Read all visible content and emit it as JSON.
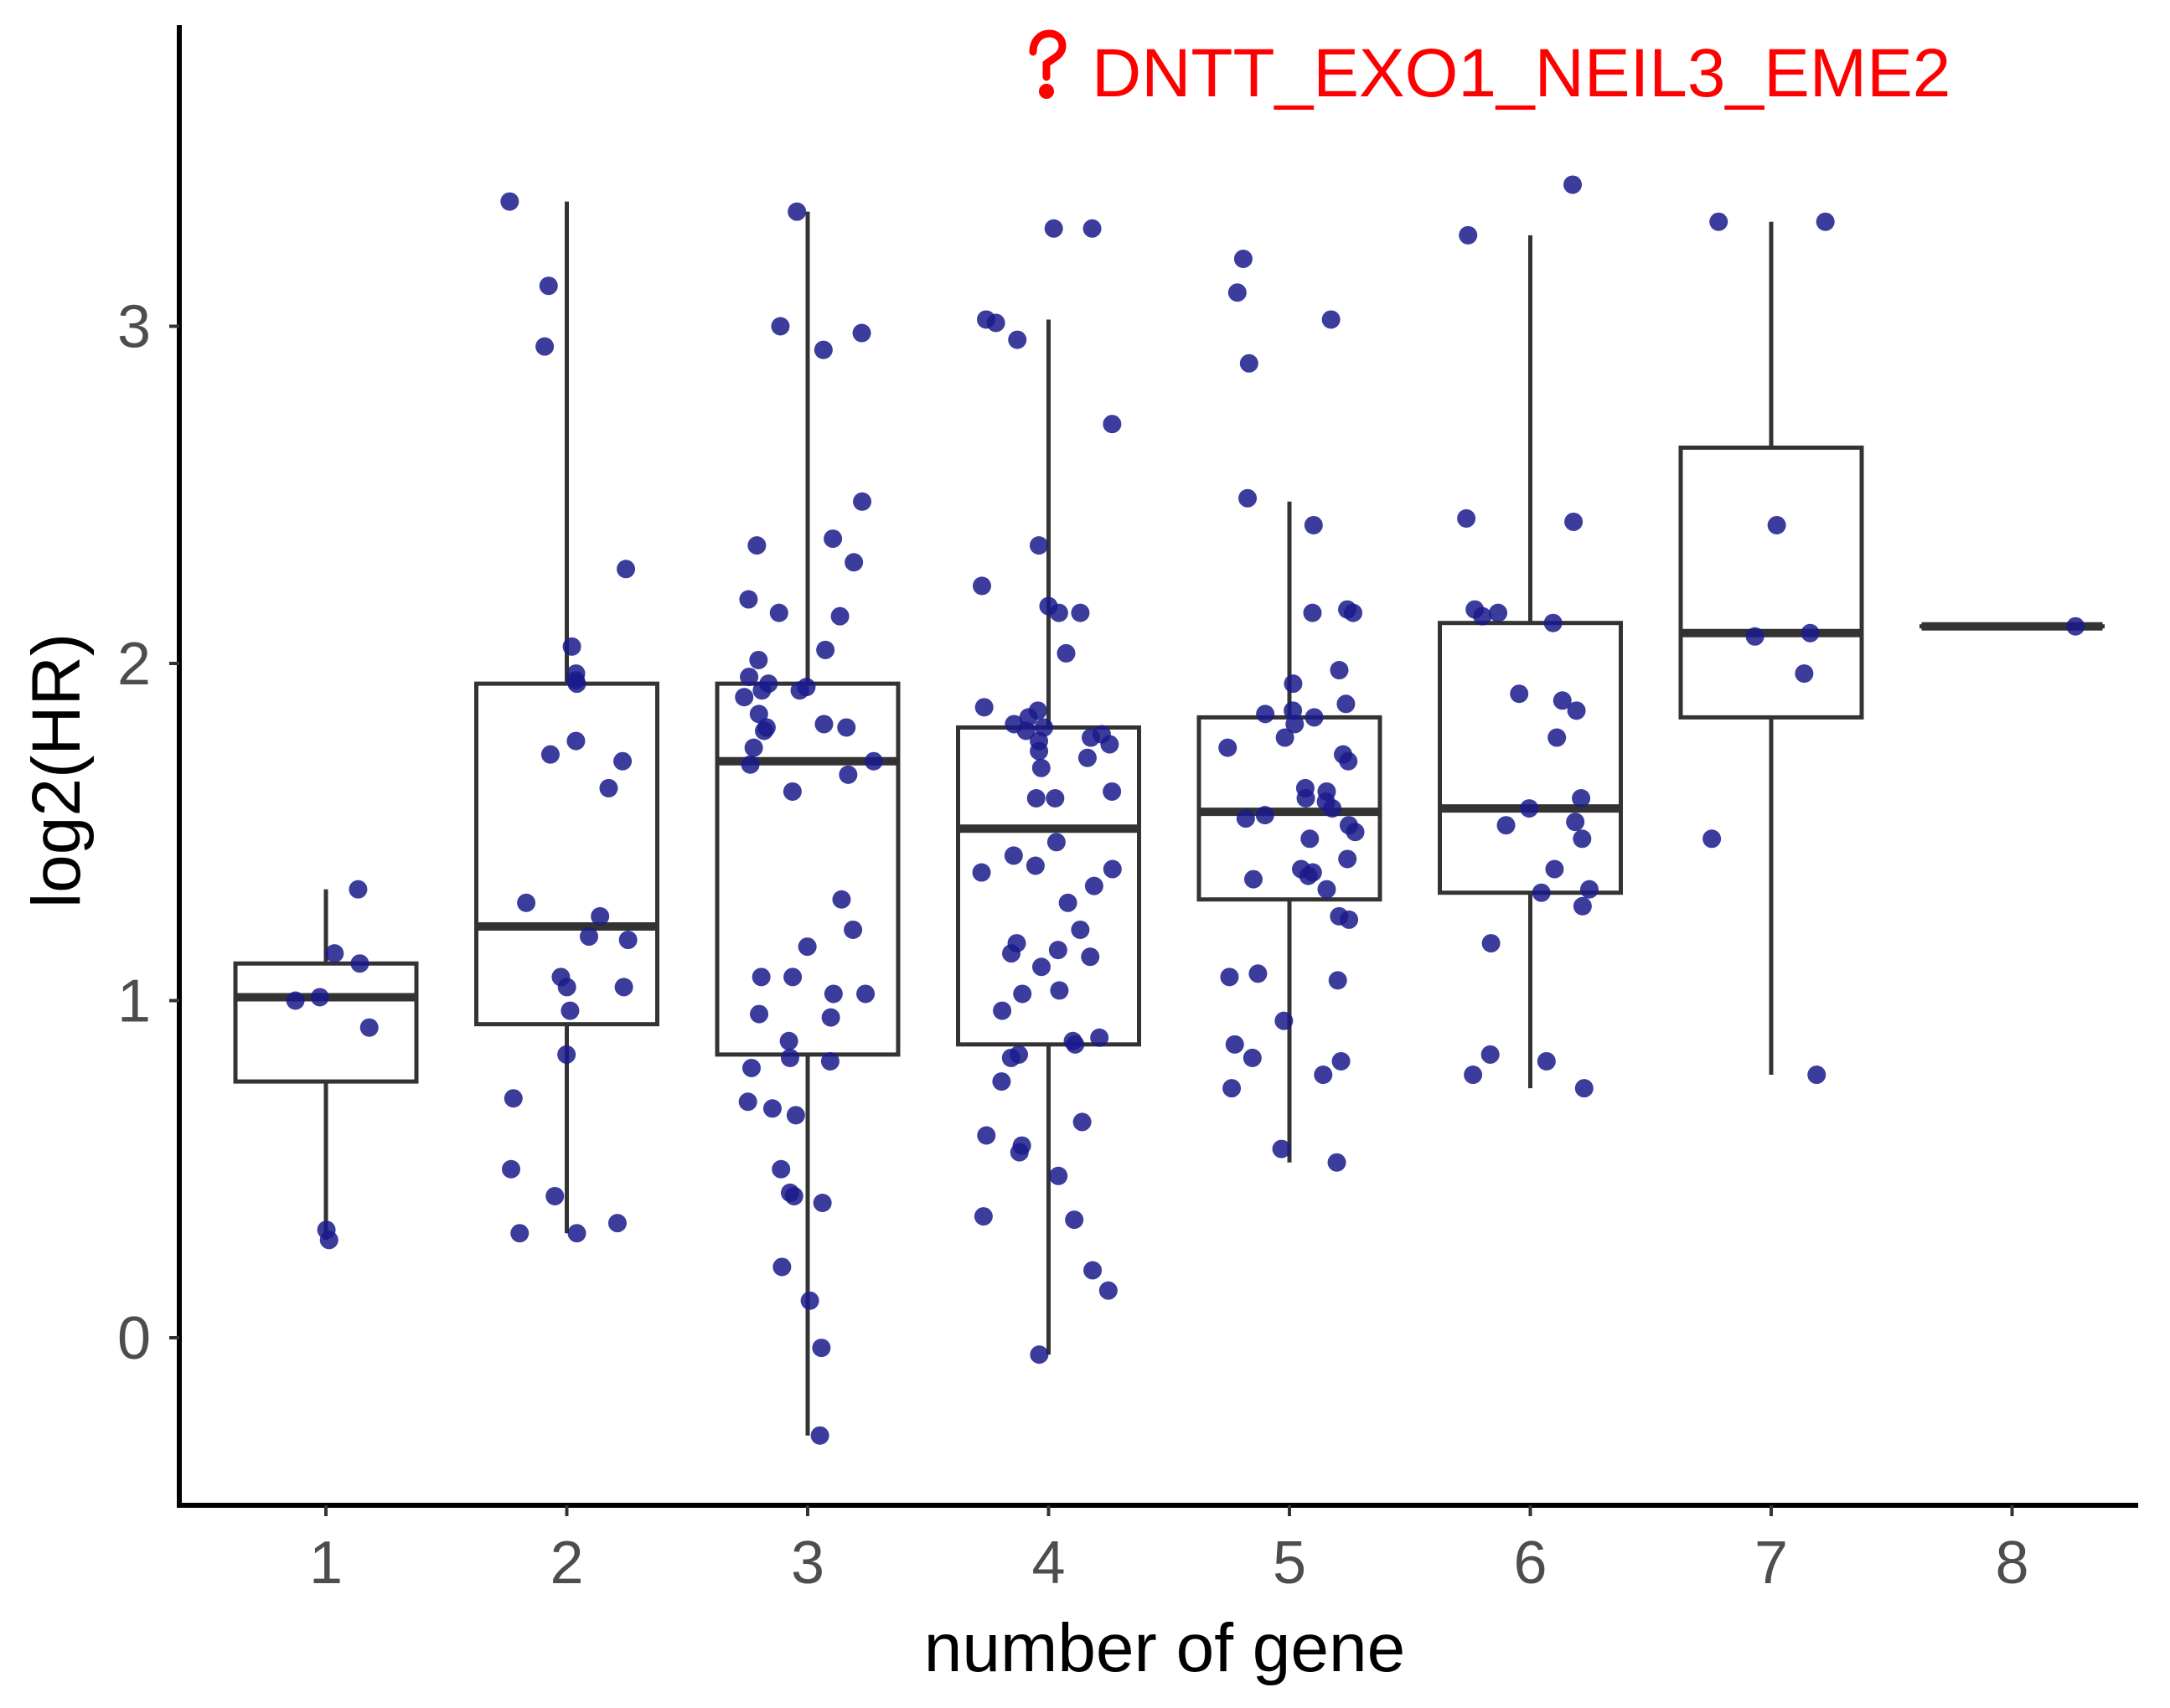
{
  "chart_data": {
    "type": "boxplot",
    "title": "",
    "xlabel": "number of gene",
    "ylabel": "log2(HR)",
    "categories": [
      "1",
      "2",
      "3",
      "4",
      "5",
      "6",
      "7",
      "8"
    ],
    "yticks": [
      0,
      1,
      2,
      3
    ],
    "ylim": [
      -0.5,
      3.7
    ],
    "grid": false,
    "legend": "none",
    "annotation": {
      "text": "DNTT_EXO1_NEIL3_EME2",
      "category": "4",
      "y": 3.55,
      "color": "#ff0000"
    },
    "colors": {
      "box": "#333333",
      "point": "#1a1a8c",
      "annotation": "#ff0000"
    },
    "boxes": [
      {
        "category": "1",
        "whisker_low": 0.29,
        "q1": 0.76,
        "median": 1.01,
        "q3": 1.11,
        "whisker_high": 1.33
      },
      {
        "category": "2",
        "whisker_low": 0.31,
        "q1": 0.93,
        "median": 1.22,
        "q3": 1.94,
        "whisker_high": 3.37
      },
      {
        "category": "3",
        "whisker_low": -0.29,
        "q1": 0.84,
        "median": 1.71,
        "q3": 1.94,
        "whisker_high": 3.34
      },
      {
        "category": "4",
        "whisker_low": -0.05,
        "q1": 0.87,
        "median": 1.51,
        "q3": 1.81,
        "whisker_high": 3.02
      },
      {
        "category": "5",
        "whisker_low": 0.52,
        "q1": 1.3,
        "median": 1.56,
        "q3": 1.84,
        "whisker_high": 2.48
      },
      {
        "category": "6",
        "whisker_low": 0.74,
        "q1": 1.32,
        "median": 1.57,
        "q3": 2.12,
        "whisker_high": 3.27
      },
      {
        "category": "7",
        "whisker_low": 0.78,
        "q1": 1.84,
        "median": 2.09,
        "q3": 2.64,
        "whisker_high": 3.31
      },
      {
        "category": "8",
        "whisker_low": 2.11,
        "q1": 2.11,
        "median": 2.11,
        "q3": 2.11,
        "whisker_high": 2.11
      }
    ],
    "points": [
      {
        "category": "1",
        "values": [
          1.33,
          1.14,
          1.01,
          1.0,
          0.92,
          1.11,
          0.32,
          0.29
        ]
      },
      {
        "category": "2",
        "values": [
          3.37,
          3.12,
          2.94,
          2.28,
          2.05,
          1.97,
          1.95,
          1.94,
          1.77,
          1.73,
          1.71,
          1.63,
          1.29,
          1.25,
          1.19,
          1.18,
          1.07,
          1.04,
          1.04,
          0.97,
          0.84,
          0.71,
          0.5,
          0.42,
          0.34,
          0.31,
          0.31
        ]
      },
      {
        "category": "3",
        "values": [
          3.34,
          3.0,
          2.98,
          2.93,
          2.48,
          2.37,
          2.35,
          2.3,
          2.19,
          2.15,
          2.14,
          2.04,
          2.01,
          1.96,
          1.94,
          1.93,
          1.92,
          1.92,
          1.9,
          1.85,
          1.82,
          1.81,
          1.81,
          1.8,
          1.75,
          1.71,
          1.7,
          1.67,
          1.62,
          1.3,
          1.21,
          1.16,
          1.07,
          1.07,
          1.02,
          1.02,
          0.96,
          0.95,
          0.88,
          0.83,
          0.82,
          0.8,
          0.7,
          0.68,
          0.66,
          0.5,
          0.43,
          0.42,
          0.4,
          0.21,
          0.11,
          -0.03,
          -0.29
        ]
      },
      {
        "category": "4",
        "values": [
          3.29,
          3.29,
          3.02,
          3.01,
          2.96,
          2.71,
          2.35,
          2.23,
          2.17,
          2.15,
          2.15,
          2.03,
          1.87,
          1.86,
          1.84,
          1.82,
          1.81,
          1.8,
          1.79,
          1.78,
          1.77,
          1.76,
          1.74,
          1.72,
          1.69,
          1.62,
          1.6,
          1.6,
          1.47,
          1.43,
          1.4,
          1.39,
          1.38,
          1.34,
          1.29,
          1.21,
          1.17,
          1.15,
          1.14,
          1.13,
          1.1,
          1.03,
          1.02,
          0.97,
          0.89,
          0.88,
          0.87,
          0.84,
          0.83,
          0.76,
          0.64,
          0.6,
          0.57,
          0.55,
          0.48,
          0.36,
          0.35,
          0.2,
          0.14,
          -0.05
        ]
      },
      {
        "category": "5",
        "values": [
          3.2,
          3.1,
          3.02,
          2.89,
          2.49,
          2.41,
          2.16,
          2.15,
          2.15,
          1.98,
          1.94,
          1.88,
          1.86,
          1.85,
          1.84,
          1.82,
          1.78,
          1.75,
          1.73,
          1.71,
          1.63,
          1.62,
          1.6,
          1.59,
          1.57,
          1.55,
          1.54,
          1.52,
          1.5,
          1.48,
          1.42,
          1.39,
          1.38,
          1.37,
          1.36,
          1.33,
          1.25,
          1.24,
          1.08,
          1.07,
          1.06,
          0.94,
          0.87,
          0.83,
          0.82,
          0.78,
          0.74,
          0.56,
          0.52
        ]
      },
      {
        "category": "6",
        "values": [
          3.42,
          3.27,
          2.43,
          2.42,
          2.16,
          2.15,
          2.14,
          2.12,
          1.91,
          1.89,
          1.86,
          1.78,
          1.6,
          1.57,
          1.53,
          1.52,
          1.48,
          1.39,
          1.33,
          1.32,
          1.28,
          1.17,
          0.84,
          0.82,
          0.78,
          0.74
        ]
      },
      {
        "category": "7",
        "values": [
          3.31,
          3.31,
          2.41,
          2.09,
          2.08,
          1.97,
          1.48,
          0.78
        ]
      },
      {
        "category": "8",
        "values": [
          2.11
        ]
      }
    ]
  }
}
